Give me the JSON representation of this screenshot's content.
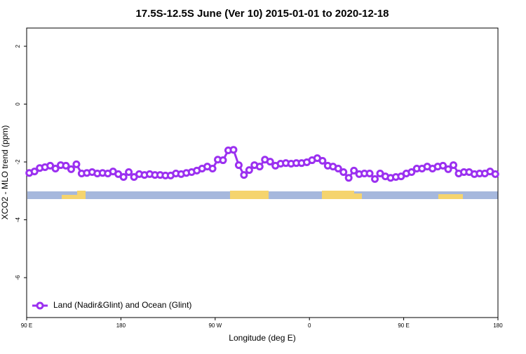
{
  "chart_data": {
    "type": "line",
    "title": "17.5S-12.5S June (Ver 10)   2015-01-01 to 2020-12-18",
    "xlabel": "Longitude (deg E)",
    "ylabel": "XCO2 - MLO trend (ppm)",
    "xlim": [
      90,
      540
    ],
    "ylim": [
      -7.38,
      2.63
    ],
    "xticks": [
      {
        "value": 90,
        "label": "90 E"
      },
      180,
      {
        "value": 270,
        "label": "90 W"
      },
      {
        "value": 360,
        "label": "0"
      },
      {
        "value": 450,
        "label": "90 E"
      },
      {
        "value": 540,
        "label": "180"
      }
    ],
    "yticks": [
      2,
      0,
      -2,
      -4,
      -6
    ],
    "legend": "bottom-left",
    "x": [
      92.5,
      97.5,
      102.5,
      107.5,
      112.5,
      117.5,
      122.5,
      127.5,
      132.5,
      137.5,
      142.5,
      147.5,
      152.5,
      157.5,
      162.5,
      167.5,
      172.5,
      177.5,
      182.5,
      187.5,
      192.5,
      197.5,
      202.5,
      207.5,
      212.5,
      217.5,
      222.5,
      227.5,
      232.5,
      237.5,
      242.5,
      247.5,
      252.5,
      257.5,
      262.5,
      267.5,
      272.5,
      277.5,
      282.5,
      287.5,
      292.5,
      297.5,
      302.5,
      307.5,
      312.5,
      317.5,
      322.5,
      327.5,
      332.5,
      337.5,
      342.5,
      347.5,
      352.5,
      357.5,
      362.5,
      367.5,
      372.5,
      377.5,
      382.5,
      387.5,
      392.5,
      397.5,
      402.5,
      407.5,
      412.5,
      417.5,
      422.5,
      427.5,
      432.5,
      437.5,
      442.5,
      447.5,
      452.5,
      457.5,
      462.5,
      467.5,
      472.5,
      477.5,
      482.5,
      487.5,
      492.5,
      497.5,
      502.5,
      507.5,
      512.5,
      517.5,
      522.5,
      527.5,
      532.5,
      537.5
    ],
    "series": [
      {
        "name": "Land (Nadir&Glint) and Ocean (Glint)",
        "color": "#9b30f0",
        "values": [
          -2.38,
          -2.33,
          -2.21,
          -2.18,
          -2.13,
          -2.23,
          -2.11,
          -2.13,
          -2.25,
          -2.08,
          -2.4,
          -2.38,
          -2.35,
          -2.4,
          -2.38,
          -2.4,
          -2.33,
          -2.42,
          -2.52,
          -2.35,
          -2.52,
          -2.42,
          -2.45,
          -2.42,
          -2.45,
          -2.45,
          -2.47,
          -2.47,
          -2.4,
          -2.42,
          -2.38,
          -2.35,
          -2.3,
          -2.23,
          -2.16,
          -2.23,
          -1.92,
          -1.94,
          -1.6,
          -1.58,
          -2.11,
          -2.45,
          -2.28,
          -2.11,
          -2.16,
          -1.92,
          -1.99,
          -2.13,
          -2.06,
          -2.04,
          -2.06,
          -2.04,
          -2.04,
          -2.01,
          -1.94,
          -1.87,
          -1.96,
          -2.13,
          -2.16,
          -2.23,
          -2.35,
          -2.55,
          -2.3,
          -2.42,
          -2.4,
          -2.4,
          -2.59,
          -2.4,
          -2.5,
          -2.55,
          -2.52,
          -2.5,
          -2.4,
          -2.35,
          -2.23,
          -2.23,
          -2.16,
          -2.23,
          -2.16,
          -2.13,
          -2.25,
          -2.11,
          -2.4,
          -2.35,
          -2.35,
          -2.42,
          -2.4,
          -2.4,
          -2.33,
          -2.42
        ]
      }
    ]
  }
}
